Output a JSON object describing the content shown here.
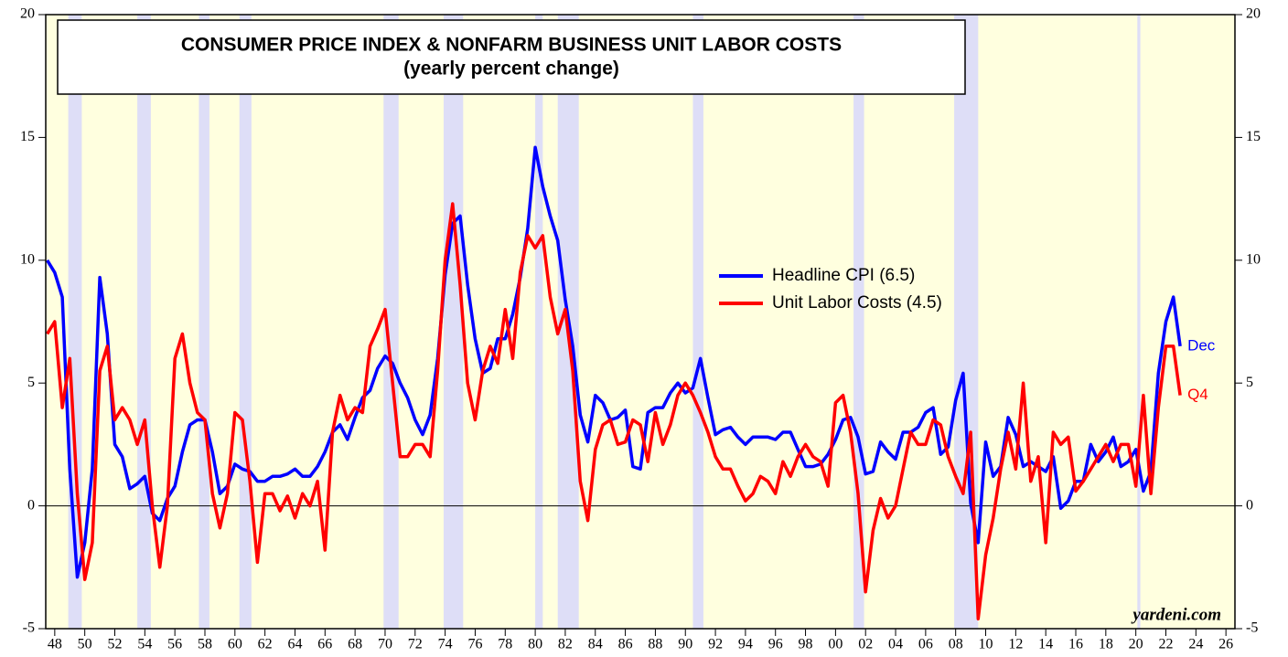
{
  "chart_data": {
    "type": "line",
    "title": "CONSUMER PRICE INDEX & NONFARM BUSINESS UNIT LABOR COSTS",
    "subtitle": "(yearly percent change)",
    "source": "yardeni.com",
    "background_color": "#ffffdf",
    "recession_color": "#dedef7",
    "recessions": [
      [
        1948.9,
        1949.8
      ],
      [
        1953.5,
        1954.4
      ],
      [
        1957.6,
        1958.3
      ],
      [
        1960.3,
        1961.1
      ],
      [
        1969.9,
        1970.9
      ],
      [
        1973.9,
        1975.2
      ],
      [
        1980.0,
        1980.5
      ],
      [
        1981.5,
        1982.9
      ],
      [
        1990.5,
        1991.2
      ],
      [
        2001.2,
        2001.9
      ],
      [
        2007.9,
        2009.5
      ],
      [
        2020.1,
        2020.3
      ]
    ],
    "xlim": [
      1947.4,
      2026.6
    ],
    "ylim": [
      -5,
      20
    ],
    "yticks": [
      -5,
      0,
      5,
      10,
      15,
      20
    ],
    "xticks": [
      {
        "value": 1948,
        "label": "48"
      },
      {
        "value": 1950,
        "label": "50"
      },
      {
        "value": 1952,
        "label": "52"
      },
      {
        "value": 1954,
        "label": "54"
      },
      {
        "value": 1956,
        "label": "56"
      },
      {
        "value": 1958,
        "label": "58"
      },
      {
        "value": 1960,
        "label": "60"
      },
      {
        "value": 1962,
        "label": "62"
      },
      {
        "value": 1964,
        "label": "64"
      },
      {
        "value": 1966,
        "label": "66"
      },
      {
        "value": 1968,
        "label": "68"
      },
      {
        "value": 1970,
        "label": "70"
      },
      {
        "value": 1972,
        "label": "72"
      },
      {
        "value": 1974,
        "label": "74"
      },
      {
        "value": 1976,
        "label": "76"
      },
      {
        "value": 1978,
        "label": "78"
      },
      {
        "value": 1980,
        "label": "80"
      },
      {
        "value": 1982,
        "label": "82"
      },
      {
        "value": 1984,
        "label": "84"
      },
      {
        "value": 1986,
        "label": "86"
      },
      {
        "value": 1988,
        "label": "88"
      },
      {
        "value": 1990,
        "label": "90"
      },
      {
        "value": 1992,
        "label": "92"
      },
      {
        "value": 1994,
        "label": "94"
      },
      {
        "value": 1996,
        "label": "96"
      },
      {
        "value": 1998,
        "label": "98"
      },
      {
        "value": 2000,
        "label": "00"
      },
      {
        "value": 2002,
        "label": "02"
      },
      {
        "value": 2004,
        "label": "04"
      },
      {
        "value": 2006,
        "label": "06"
      },
      {
        "value": 2008,
        "label": "08"
      },
      {
        "value": 2010,
        "label": "10"
      },
      {
        "value": 2012,
        "label": "12"
      },
      {
        "value": 2014,
        "label": "14"
      },
      {
        "value": 2016,
        "label": "16"
      },
      {
        "value": 2018,
        "label": "18"
      },
      {
        "value": 2020,
        "label": "20"
      },
      {
        "value": 2022,
        "label": "22"
      },
      {
        "value": 2024,
        "label": "24"
      },
      {
        "value": 2026,
        "label": "26"
      }
    ],
    "x": [
      1947.5,
      1948,
      1948.5,
      1949,
      1949.5,
      1950,
      1950.5,
      1951,
      1951.5,
      1952,
      1952.5,
      1953,
      1953.5,
      1954,
      1954.5,
      1955,
      1955.5,
      1956,
      1956.5,
      1957,
      1957.5,
      1958,
      1958.5,
      1959,
      1959.5,
      1960,
      1960.5,
      1961,
      1961.5,
      1962,
      1962.5,
      1963,
      1963.5,
      1964,
      1964.5,
      1965,
      1965.5,
      1966,
      1966.5,
      1967,
      1967.5,
      1968,
      1968.5,
      1969,
      1969.5,
      1970,
      1970.5,
      1971,
      1971.5,
      1972,
      1972.5,
      1973,
      1973.5,
      1974,
      1974.5,
      1975,
      1975.5,
      1976,
      1976.5,
      1977,
      1977.5,
      1978,
      1978.5,
      1979,
      1979.5,
      1980,
      1980.5,
      1981,
      1981.5,
      1982,
      1982.5,
      1983,
      1983.5,
      1984,
      1984.5,
      1985,
      1985.5,
      1986,
      1986.5,
      1987,
      1987.5,
      1988,
      1988.5,
      1989,
      1989.5,
      1990,
      1990.5,
      1991,
      1991.5,
      1992,
      1992.5,
      1993,
      1993.5,
      1994,
      1994.5,
      1995,
      1995.5,
      1996,
      1996.5,
      1997,
      1997.5,
      1998,
      1998.5,
      1999,
      1999.5,
      2000,
      2000.5,
      2001,
      2001.5,
      2002,
      2002.5,
      2003,
      2003.5,
      2004,
      2004.5,
      2005,
      2005.5,
      2006,
      2006.5,
      2007,
      2007.5,
      2008,
      2008.5,
      2009,
      2009.5,
      2010,
      2010.5,
      2011,
      2011.5,
      2012,
      2012.5,
      2013,
      2013.5,
      2014,
      2014.5,
      2015,
      2015.5,
      2016,
      2016.5,
      2017,
      2017.5,
      2018,
      2018.5,
      2019,
      2019.5,
      2020,
      2020.5,
      2021,
      2021.5,
      2022,
      2022.5,
      2022.95
    ],
    "series": [
      {
        "name": "Headline CPI (6.5)",
        "color": "#0000ff",
        "end_label": "Dec",
        "values": [
          10,
          9.5,
          8.5,
          1.5,
          -2.9,
          -1.5,
          1.5,
          9.3,
          7,
          2.5,
          2,
          0.7,
          0.9,
          1.2,
          -0.3,
          -0.6,
          0.3,
          0.8,
          2.2,
          3.3,
          3.5,
          3.5,
          2.2,
          0.5,
          0.8,
          1.7,
          1.5,
          1.4,
          1.0,
          1.0,
          1.2,
          1.2,
          1.3,
          1.5,
          1.2,
          1.2,
          1.6,
          2.2,
          3.0,
          3.3,
          2.7,
          3.6,
          4.4,
          4.7,
          5.6,
          6.1,
          5.8,
          5.0,
          4.4,
          3.5,
          2.9,
          3.7,
          6.0,
          9.4,
          11.5,
          11.8,
          9.0,
          6.8,
          5.4,
          5.6,
          6.8,
          6.8,
          7.8,
          9.3,
          11.3,
          14.6,
          13.0,
          11.8,
          10.8,
          8.4,
          6.5,
          3.7,
          2.6,
          4.5,
          4.2,
          3.5,
          3.6,
          3.9,
          1.6,
          1.5,
          3.8,
          4.0,
          4.0,
          4.6,
          5.0,
          4.6,
          4.8,
          6.0,
          4.4,
          2.9,
          3.1,
          3.2,
          2.8,
          2.5,
          2.8,
          2.8,
          2.8,
          2.7,
          3.0,
          3.0,
          2.3,
          1.6,
          1.6,
          1.7,
          2.1,
          2.7,
          3.5,
          3.6,
          2.8,
          1.3,
          1.4,
          2.6,
          2.2,
          1.9,
          3.0,
          3.0,
          3.2,
          3.8,
          4.0,
          2.1,
          2.4,
          4.3,
          5.4,
          0.1,
          -1.5,
          2.6,
          1.2,
          1.6,
          3.6,
          2.9,
          1.6,
          1.8,
          1.6,
          1.4,
          2.0,
          -0.1,
          0.2,
          1.0,
          1.0,
          2.5,
          1.8,
          2.2,
          2.8,
          1.6,
          1.8,
          2.3,
          0.6,
          1.4,
          5.4,
          7.5,
          8.5,
          6.5
        ]
      },
      {
        "name": "Unit Labor Costs (4.5)",
        "color": "#ff0000",
        "end_label": "Q4",
        "values": [
          7,
          7.5,
          4.0,
          6.0,
          0.5,
          -3.0,
          -1.5,
          5.5,
          6.5,
          3.5,
          4.0,
          3.5,
          2.5,
          3.5,
          0,
          -2.5,
          0,
          6,
          7,
          5,
          3.8,
          3.5,
          0.5,
          -0.9,
          0.5,
          3.8,
          3.5,
          1.0,
          -2.3,
          0.5,
          0.5,
          -0.2,
          0.4,
          -0.5,
          0.5,
          0.0,
          1.0,
          -1.8,
          3.0,
          4.5,
          3.5,
          4.0,
          3.8,
          6.5,
          7.2,
          8.0,
          5.0,
          2.0,
          2.0,
          2.5,
          2.5,
          2.0,
          5.5,
          10.0,
          12.3,
          9.0,
          5.0,
          3.5,
          5.5,
          6.5,
          5.8,
          8.0,
          6.0,
          9.5,
          11.0,
          10.5,
          11.0,
          8.5,
          7.0,
          8.0,
          5.5,
          1.0,
          -0.6,
          2.3,
          3.3,
          3.5,
          2.5,
          2.6,
          3.5,
          3.3,
          1.8,
          3.8,
          2.5,
          3.3,
          4.5,
          5.0,
          4.5,
          3.8,
          3.0,
          2.0,
          1.5,
          1.5,
          0.8,
          0.2,
          0.5,
          1.2,
          1.0,
          0.5,
          1.8,
          1.2,
          2.0,
          2.5,
          2.0,
          1.8,
          0.8,
          4.2,
          4.5,
          3.0,
          0.5,
          -3.5,
          -1.0,
          0.3,
          -0.5,
          0.0,
          1.5,
          3.0,
          2.5,
          2.5,
          3.5,
          3.3,
          2.0,
          1.2,
          0.5,
          3.0,
          -4.6,
          -2.0,
          -0.5,
          1.5,
          3.0,
          1.5,
          5.0,
          1.0,
          2.0,
          -1.5,
          3.0,
          2.5,
          2.8,
          0.6,
          1.0,
          1.5,
          2.0,
          2.5,
          1.8,
          2.5,
          2.5,
          0.8,
          4.5,
          0.5,
          4.0,
          6.5,
          6.5,
          4.5
        ]
      }
    ]
  }
}
